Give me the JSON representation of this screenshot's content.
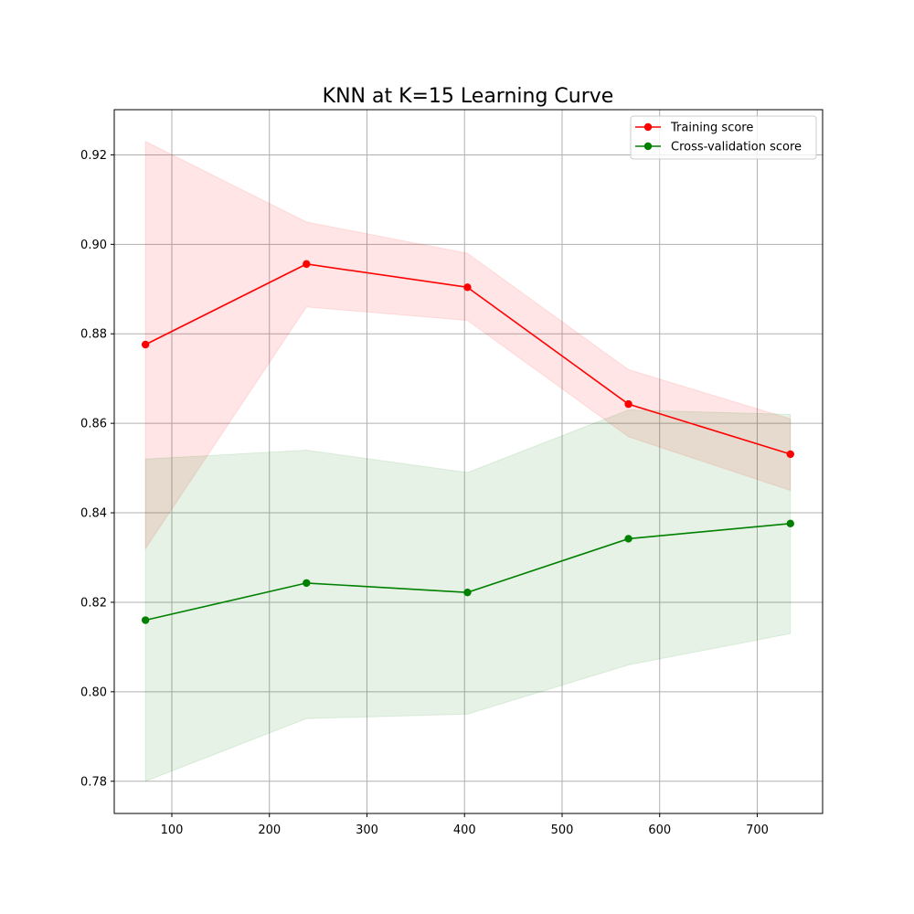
{
  "chart_data": {
    "type": "line",
    "title": "KNN at K=15 Learning Curve",
    "xlabel": "",
    "ylabel": "",
    "xlim": [
      41,
      767
    ],
    "ylim": [
      0.7728,
      0.9301
    ],
    "xticks": [
      100,
      200,
      300,
      400,
      500,
      600,
      700
    ],
    "yticks": [
      0.78,
      0.8,
      0.82,
      0.84,
      0.86,
      0.88,
      0.9,
      0.92
    ],
    "xtick_labels": [
      "100",
      "200",
      "300",
      "400",
      "500",
      "600",
      "700"
    ],
    "ytick_labels": [
      "0.78",
      "0.80",
      "0.82",
      "0.84",
      "0.86",
      "0.88",
      "0.90",
      "0.92"
    ],
    "grid": true,
    "legend_position": "top-right",
    "x": [
      73,
      238,
      403,
      568,
      734
    ],
    "series": [
      {
        "name": "Training score",
        "color": "#ff0000",
        "band_color": "#ff0000",
        "values": [
          0.8776,
          0.8956,
          0.8904,
          0.8643,
          0.8531
        ],
        "band_upper": [
          0.923,
          0.905,
          0.898,
          0.872,
          0.861
        ],
        "band_lower": [
          0.832,
          0.886,
          0.883,
          0.857,
          0.845
        ]
      },
      {
        "name": "Cross-validation score",
        "color": "#008000",
        "band_color": "#008000",
        "values": [
          0.816,
          0.8243,
          0.8222,
          0.8342,
          0.8376
        ],
        "band_upper": [
          0.852,
          0.854,
          0.849,
          0.863,
          0.862
        ],
        "band_lower": [
          0.78,
          0.794,
          0.795,
          0.806,
          0.813
        ]
      }
    ]
  }
}
